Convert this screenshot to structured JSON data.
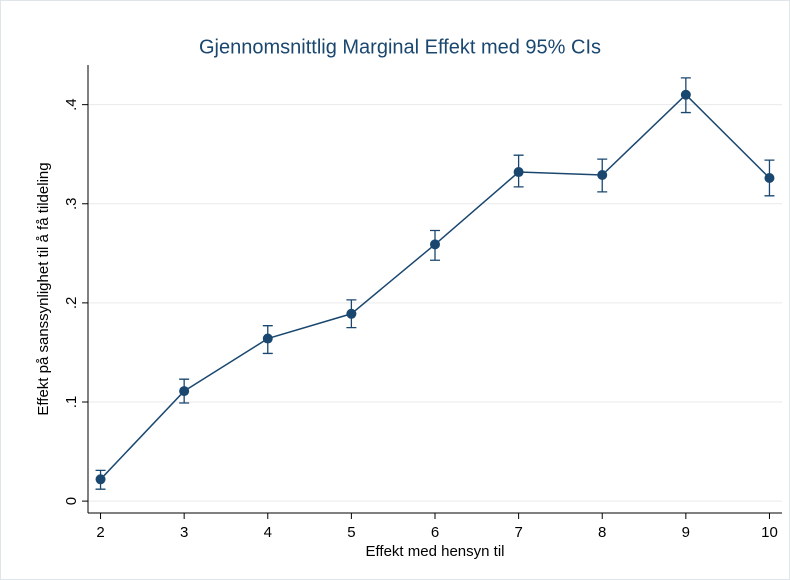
{
  "chart_data": {
    "type": "line",
    "title": "Gjennomsnittlig Marginal Effekt med 95% CIs",
    "x_label": "Effekt med hensyn til",
    "y_label": "Effekt på sanssynlighet til å få tildeling",
    "x": [
      2,
      3,
      4,
      5,
      6,
      7,
      8,
      9,
      10
    ],
    "values": [
      0.022,
      0.111,
      0.164,
      0.189,
      0.259,
      0.332,
      0.329,
      0.41,
      0.326
    ],
    "ci_lower": [
      0.012,
      0.099,
      0.149,
      0.175,
      0.243,
      0.317,
      0.312,
      0.392,
      0.308
    ],
    "ci_upper": [
      0.031,
      0.123,
      0.177,
      0.203,
      0.273,
      0.349,
      0.345,
      0.427,
      0.344
    ],
    "color": "#1a476f",
    "xlim": [
      1.85,
      10.15
    ],
    "xticks": [
      2,
      3,
      4,
      5,
      6,
      7,
      8,
      9,
      10
    ],
    "ylim": [
      -0.012,
      0.44
    ],
    "yticks": [
      0,
      {
        "value": 0.1,
        "label": ".1"
      },
      {
        "value": 0.2,
        "label": ".2"
      },
      {
        "value": 0.3,
        "label": ".3"
      },
      {
        "value": 0.4,
        "label": ".4"
      }
    ],
    "grid": true
  }
}
